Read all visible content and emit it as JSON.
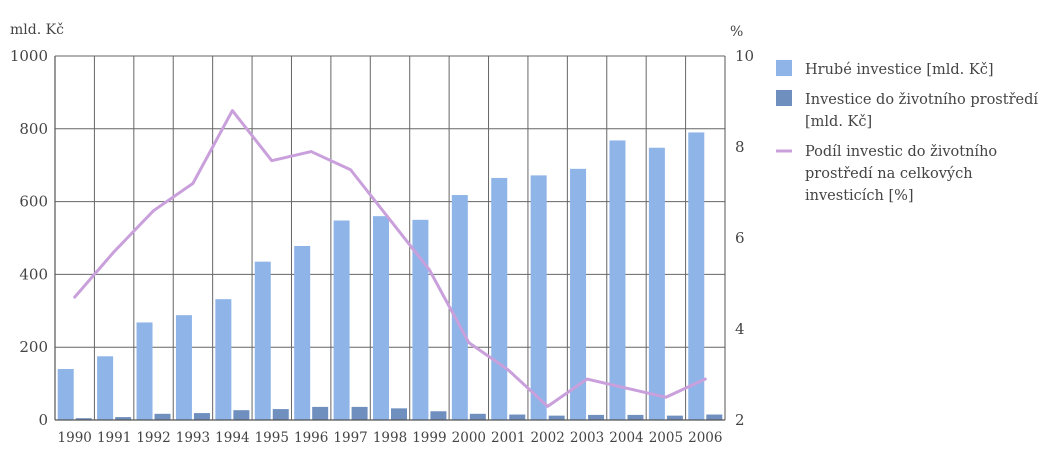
{
  "chart_data": {
    "type": "bar",
    "left_unit": "mld. Kč",
    "right_unit": "%",
    "categories": [
      "1990",
      "1991",
      "1992",
      "1993",
      "1994",
      "1995",
      "1996",
      "1997",
      "1998",
      "1999",
      "2000",
      "2001",
      "2002",
      "2003",
      "2004",
      "2005",
      "2006"
    ],
    "ylim_left": [
      0,
      1000
    ],
    "yticks_left": [
      "0",
      "200",
      "400",
      "600",
      "800",
      "1000"
    ],
    "ylim_right": [
      2,
      10
    ],
    "yticks_right": [
      "2",
      "4",
      "6",
      "8",
      "10"
    ],
    "grid": true,
    "legend_position": "right",
    "series": [
      {
        "name": "Hrubé investice [mld. Kč]",
        "type": "bar",
        "axis": "left",
        "color": "#8eb4e8",
        "values": [
          140,
          175,
          268,
          288,
          332,
          435,
          478,
          548,
          560,
          550,
          618,
          665,
          672,
          690,
          768,
          748,
          790
        ]
      },
      {
        "name": "Investice do životního prostředí [mld. Kč]",
        "type": "bar",
        "axis": "left",
        "color": "#6f8fbf",
        "values": [
          5,
          8,
          17,
          19,
          27,
          30,
          36,
          36,
          32,
          24,
          17,
          15,
          12,
          14,
          14,
          12,
          15
        ]
      },
      {
        "name": "Podíl investic do životního prostředí na celkových investicích [%]",
        "type": "line",
        "axis": "right",
        "color": "#c9a0dc",
        "values": [
          4.7,
          5.7,
          6.6,
          7.2,
          8.8,
          7.7,
          7.9,
          7.5,
          6.4,
          5.3,
          3.7,
          3.1,
          2.3,
          2.9,
          2.7,
          2.5,
          2.9
        ]
      }
    ]
  }
}
